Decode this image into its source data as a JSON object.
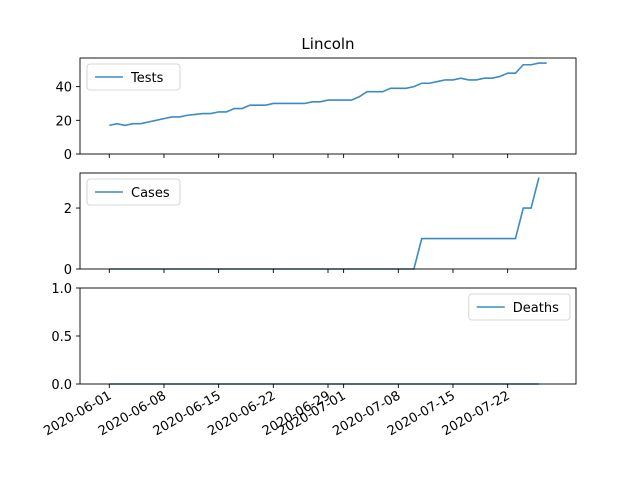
{
  "title": "Lincoln",
  "series_color": "#3b8bc2",
  "chart_data": [
    {
      "type": "line",
      "series": [
        {
          "name": "Tests",
          "x": [
            "2020-06-01",
            "2020-06-02",
            "2020-06-03",
            "2020-06-04",
            "2020-06-05",
            "2020-06-06",
            "2020-06-07",
            "2020-06-08",
            "2020-06-09",
            "2020-06-10",
            "2020-06-11",
            "2020-06-12",
            "2020-06-13",
            "2020-06-14",
            "2020-06-15",
            "2020-06-16",
            "2020-06-17",
            "2020-06-18",
            "2020-06-19",
            "2020-06-20",
            "2020-06-21",
            "2020-06-22",
            "2020-06-23",
            "2020-06-24",
            "2020-06-25",
            "2020-06-26",
            "2020-06-27",
            "2020-06-28",
            "2020-06-29",
            "2020-06-30",
            "2020-07-01",
            "2020-07-02",
            "2020-07-03",
            "2020-07-04",
            "2020-07-05",
            "2020-07-06",
            "2020-07-07",
            "2020-07-08",
            "2020-07-09",
            "2020-07-10",
            "2020-07-11",
            "2020-07-12",
            "2020-07-13",
            "2020-07-14",
            "2020-07-15",
            "2020-07-16",
            "2020-07-17",
            "2020-07-18",
            "2020-07-19",
            "2020-07-20",
            "2020-07-21",
            "2020-07-22",
            "2020-07-23",
            "2020-07-24",
            "2020-07-25",
            "2020-07-26",
            "2020-07-27"
          ],
          "values": [
            17,
            18,
            17,
            18,
            18,
            19,
            20,
            21,
            22,
            22,
            23,
            23.5,
            24,
            24,
            25,
            25,
            27,
            27,
            29,
            29,
            29,
            30,
            30,
            30,
            30,
            30,
            31,
            31,
            32,
            32,
            32,
            32,
            34,
            37,
            37,
            37,
            39,
            39,
            39,
            40,
            42,
            42,
            43,
            44,
            44,
            45,
            44,
            44,
            45,
            45,
            46,
            48,
            48,
            53,
            53,
            54,
            54
          ]
        }
      ],
      "ylim": [
        0,
        57
      ],
      "yticks": [
        0,
        20,
        40
      ],
      "legend_position": "upper-left"
    },
    {
      "type": "line",
      "series": [
        {
          "name": "Cases",
          "x": [
            "2020-06-01",
            "2020-07-09",
            "2020-07-10",
            "2020-07-11",
            "2020-07-22",
            "2020-07-23",
            "2020-07-24",
            "2020-07-25",
            "2020-07-26"
          ],
          "values": [
            0,
            0,
            0,
            1,
            1,
            1,
            2,
            2,
            3
          ]
        }
      ],
      "ylim": [
        0,
        3.15
      ],
      "yticks": [
        0,
        2
      ],
      "legend_position": "upper-left"
    },
    {
      "type": "line",
      "series": [
        {
          "name": "Deaths",
          "x": [
            "2020-06-01",
            "2020-07-26"
          ],
          "values": [
            0,
            0
          ]
        }
      ],
      "ylim": [
        0,
        1
      ],
      "yticks": [
        0.0,
        0.5,
        1.0
      ],
      "ytick_labels": [
        "0.0",
        "0.5",
        "1.0"
      ],
      "legend_position": "upper-right"
    }
  ],
  "x_tick_dates": [
    "2020-06-01",
    "2020-06-08",
    "2020-06-15",
    "2020-06-22",
    "2020-06-29",
    "2020-07-01",
    "2020-07-08",
    "2020-07-15",
    "2020-07-22"
  ],
  "x_tick_labels": [
    "2020-06-01",
    "2020-06-08",
    "2020-06-15",
    "2020-06-22",
    "2020-06-29",
    "2020-07-01",
    "2020-07-08",
    "2020-07-15",
    "2020-07-22"
  ]
}
